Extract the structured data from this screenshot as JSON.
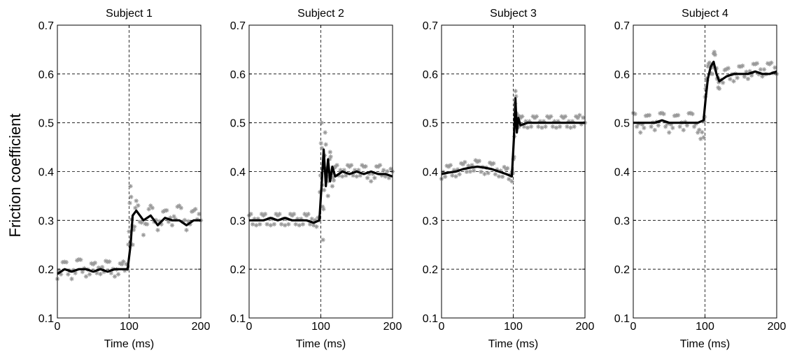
{
  "figure": {
    "ylabel": "Friction coefficient"
  },
  "chart_data": [
    {
      "type": "line",
      "title": "Subject 1",
      "xlabel": "Time (ms)",
      "ylabel": "Friction coefficient",
      "xlim": [
        0,
        200
      ],
      "ylim": [
        0.1,
        0.7
      ],
      "xticks": [
        0,
        100,
        200
      ],
      "yticks": [
        0.1,
        0.2,
        0.3,
        0.4,
        0.5,
        0.6,
        0.7
      ],
      "grid": true,
      "series": [
        {
          "style": "thick black line (mean)",
          "color": "#000000",
          "x": [
            0,
            10,
            20,
            30,
            40,
            50,
            60,
            70,
            80,
            90,
            98,
            102,
            105,
            110,
            120,
            130,
            140,
            150,
            160,
            170,
            180,
            190,
            200
          ],
          "y": [
            0.19,
            0.2,
            0.195,
            0.2,
            0.2,
            0.195,
            0.2,
            0.195,
            0.2,
            0.2,
            0.2,
            0.25,
            0.31,
            0.32,
            0.3,
            0.31,
            0.29,
            0.305,
            0.3,
            0.3,
            0.29,
            0.3,
            0.3
          ]
        },
        {
          "style": "grey asterisks (individual trials)",
          "color": "#999999",
          "x": [
            0,
            10,
            20,
            30,
            40,
            50,
            60,
            70,
            80,
            90,
            98,
            102,
            105,
            110,
            120,
            130,
            140,
            150,
            160,
            170,
            180,
            190,
            200
          ],
          "y": [
            0.18,
            0.215,
            0.18,
            0.22,
            0.185,
            0.21,
            0.19,
            0.215,
            0.185,
            0.21,
            0.2,
            0.37,
            0.25,
            0.34,
            0.27,
            0.33,
            0.28,
            0.32,
            0.29,
            0.33,
            0.28,
            0.32,
            0.3
          ]
        }
      ]
    },
    {
      "type": "line",
      "title": "Subject 2",
      "xlabel": "Time (ms)",
      "xlim": [
        0,
        200
      ],
      "ylim": [
        0.1,
        0.7
      ],
      "xticks": [
        0,
        100,
        200
      ],
      "yticks": [
        0.1,
        0.2,
        0.3,
        0.4,
        0.5,
        0.6,
        0.7
      ],
      "grid": true,
      "series": [
        {
          "style": "thick black line (mean)",
          "color": "#000000",
          "x": [
            0,
            10,
            20,
            30,
            40,
            50,
            60,
            70,
            80,
            90,
            98,
            101,
            104,
            107,
            110,
            113,
            116,
            120,
            130,
            140,
            150,
            160,
            170,
            180,
            190,
            200
          ],
          "y": [
            0.3,
            0.3,
            0.3,
            0.305,
            0.3,
            0.305,
            0.3,
            0.3,
            0.3,
            0.295,
            0.3,
            0.37,
            0.445,
            0.37,
            0.425,
            0.38,
            0.41,
            0.39,
            0.4,
            0.395,
            0.4,
            0.395,
            0.4,
            0.395,
            0.395,
            0.39
          ]
        },
        {
          "style": "grey asterisks (individual trials)",
          "color": "#999999",
          "x": [
            0,
            10,
            20,
            30,
            40,
            50,
            60,
            70,
            80,
            90,
            98,
            101,
            103,
            106,
            110,
            113,
            116,
            120,
            130,
            140,
            150,
            160,
            170,
            180,
            190,
            200
          ],
          "y": [
            0.31,
            0.29,
            0.31,
            0.29,
            0.31,
            0.29,
            0.31,
            0.29,
            0.31,
            0.29,
            0.3,
            0.5,
            0.26,
            0.48,
            0.35,
            0.44,
            0.37,
            0.41,
            0.39,
            0.41,
            0.39,
            0.41,
            0.38,
            0.41,
            0.39,
            0.4
          ]
        }
      ]
    },
    {
      "type": "line",
      "title": "Subject 3",
      "xlabel": "Time (ms)",
      "xlim": [
        0,
        200
      ],
      "ylim": [
        0.1,
        0.7
      ],
      "xticks": [
        0,
        100,
        200
      ],
      "yticks": [
        0.1,
        0.2,
        0.3,
        0.4,
        0.5,
        0.6,
        0.7
      ],
      "grid": true,
      "series": [
        {
          "style": "thick black line (mean)",
          "color": "#000000",
          "x": [
            0,
            10,
            20,
            30,
            40,
            50,
            60,
            70,
            80,
            90,
            98,
            101,
            103,
            105,
            107,
            110,
            120,
            130,
            140,
            150,
            160,
            170,
            180,
            190,
            200
          ],
          "y": [
            0.395,
            0.398,
            0.4,
            0.405,
            0.408,
            0.41,
            0.408,
            0.405,
            0.4,
            0.395,
            0.39,
            0.47,
            0.55,
            0.48,
            0.51,
            0.495,
            0.5,
            0.5,
            0.5,
            0.5,
            0.5,
            0.5,
            0.5,
            0.5,
            0.5
          ]
        },
        {
          "style": "grey asterisks (individual trials)",
          "color": "#999999",
          "x": [
            0,
            10,
            20,
            30,
            40,
            50,
            60,
            70,
            80,
            90,
            98,
            101,
            103,
            106,
            110,
            120,
            130,
            140,
            150,
            160,
            170,
            180,
            190,
            200
          ],
          "y": [
            0.385,
            0.41,
            0.39,
            0.415,
            0.4,
            0.42,
            0.395,
            0.415,
            0.39,
            0.405,
            0.38,
            0.43,
            0.565,
            0.49,
            0.51,
            0.49,
            0.51,
            0.49,
            0.51,
            0.49,
            0.51,
            0.49,
            0.51,
            0.5
          ]
        }
      ]
    },
    {
      "type": "line",
      "title": "Subject 4",
      "xlabel": "Time (ms)",
      "xlim": [
        0,
        200
      ],
      "ylim": [
        0.1,
        0.7
      ],
      "xticks": [
        0,
        100,
        200
      ],
      "yticks": [
        0.1,
        0.2,
        0.3,
        0.4,
        0.5,
        0.6,
        0.7
      ],
      "grid": true,
      "series": [
        {
          "style": "thick black line (mean)",
          "color": "#000000",
          "x": [
            0,
            10,
            20,
            30,
            40,
            50,
            60,
            70,
            80,
            90,
            98,
            101,
            104,
            108,
            112,
            116,
            120,
            130,
            140,
            150,
            160,
            170,
            180,
            190,
            200
          ],
          "y": [
            0.5,
            0.5,
            0.5,
            0.5,
            0.505,
            0.5,
            0.5,
            0.5,
            0.5,
            0.5,
            0.505,
            0.55,
            0.59,
            0.615,
            0.625,
            0.6,
            0.585,
            0.595,
            0.6,
            0.6,
            0.6,
            0.605,
            0.6,
            0.6,
            0.605
          ]
        },
        {
          "style": "grey asterisks (individual trials)",
          "color": "#999999",
          "x": [
            0,
            10,
            20,
            30,
            40,
            50,
            60,
            70,
            80,
            90,
            98,
            101,
            105,
            110,
            113,
            117,
            120,
            130,
            140,
            150,
            160,
            170,
            180,
            190,
            200
          ],
          "y": [
            0.52,
            0.48,
            0.515,
            0.485,
            0.52,
            0.48,
            0.515,
            0.485,
            0.52,
            0.48,
            0.47,
            0.57,
            0.62,
            0.6,
            0.645,
            0.59,
            0.57,
            0.61,
            0.585,
            0.615,
            0.59,
            0.62,
            0.595,
            0.62,
            0.6
          ]
        }
      ]
    }
  ]
}
